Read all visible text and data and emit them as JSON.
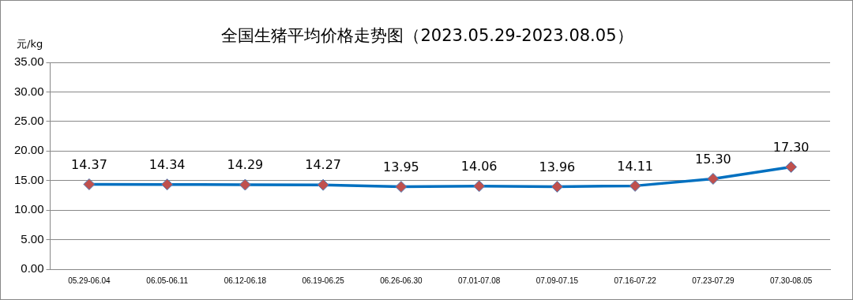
{
  "chart_data": {
    "type": "line",
    "title": "全国生猪平均价格走势图（2023.05.29-2023.08.05）",
    "ylabel": "元/kg",
    "categories": [
      "05.29-06.04",
      "06.05-06.11",
      "06.12-06.18",
      "06.19-06.25",
      "06.26-06.30",
      "07.01-07.08",
      "07.09-07.15",
      "07.16-07.22",
      "07.23-07.29",
      "07.30-08.05"
    ],
    "series": [
      {
        "color": "#0070c0",
        "values": [
          14.37,
          14.34,
          14.29,
          14.27,
          13.95,
          14.06,
          13.96,
          14.11,
          15.3,
          17.3
        ],
        "value_labels": [
          "14.37",
          "14.34",
          "14.29",
          "14.27",
          "13.95",
          "14.06",
          "13.96",
          "14.11",
          "15.30",
          "17.30"
        ]
      }
    ],
    "ylim": [
      0,
      35
    ],
    "yticks": [
      {
        "value": 0,
        "label": "0.00"
      },
      {
        "value": 5,
        "label": "5.00"
      },
      {
        "value": 10,
        "label": "10.00"
      },
      {
        "value": 15,
        "label": "15.00"
      },
      {
        "value": 20,
        "label": "20.00"
      },
      {
        "value": 25,
        "label": "25.00"
      },
      {
        "value": 30,
        "label": "30.00"
      },
      {
        "value": 35,
        "label": "35.00"
      }
    ],
    "grid": "y",
    "marker": "diamond",
    "line_style": "solid",
    "legend": false
  }
}
